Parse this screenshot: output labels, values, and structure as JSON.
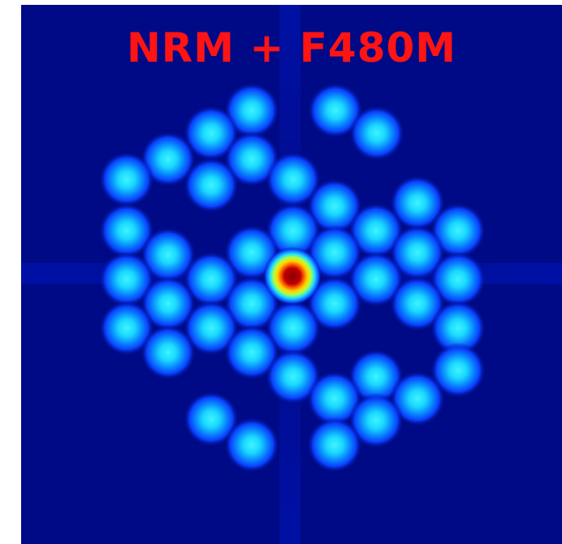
{
  "title": "NRM + F480M",
  "colors": {
    "background": "#000a86",
    "spot_core": "#22e6ff",
    "spot_glow": "#0a40ff",
    "peak_core": "#8a0000",
    "peak_ring": "#ffd400",
    "title": "#ff1414"
  },
  "image": {
    "type": "interferogram",
    "colormap": "jet"
  }
}
